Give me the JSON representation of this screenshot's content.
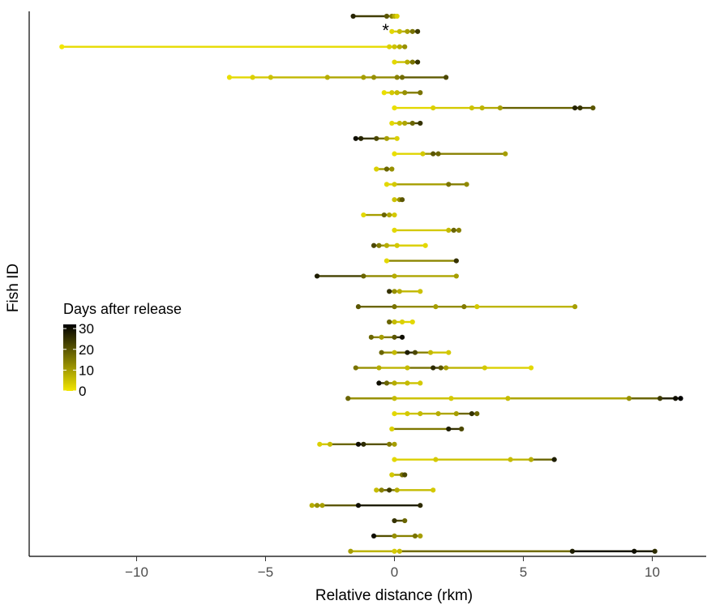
{
  "chart_data": {
    "type": "scatter",
    "xlabel": "Relative distance (rkm)",
    "ylabel": "Fish ID",
    "xlim": [
      -14.2,
      12.0
    ],
    "xticks": [
      -10,
      -5,
      0,
      5,
      10
    ],
    "xtick_labels": [
      "−10",
      "−5",
      "0",
      "5",
      "10"
    ],
    "grid": false,
    "annotation": "*",
    "annotated_fish": 1,
    "legend": {
      "title": "Days after release",
      "ticks": [
        30,
        20,
        10,
        0
      ],
      "tick_labels": [
        "30",
        "20",
        "10",
        "0"
      ],
      "color_low": "#f2e600",
      "color_high": "#000000",
      "placement": "left-center"
    },
    "fish": [
      {
        "points": [
          [
            -1.6,
            27
          ],
          [
            -0.3,
            20
          ],
          [
            -0.1,
            14
          ],
          [
            0.0,
            8
          ],
          [
            0.1,
            3
          ]
        ]
      },
      {
        "points": [
          [
            -0.1,
            2
          ],
          [
            0.2,
            6
          ],
          [
            0.5,
            10
          ],
          [
            0.7,
            16
          ],
          [
            0.9,
            24
          ]
        ]
      },
      {
        "points": [
          [
            -12.9,
            0
          ],
          [
            -0.2,
            3
          ],
          [
            0.0,
            5
          ],
          [
            0.2,
            8
          ],
          [
            0.4,
            12
          ]
        ]
      },
      {
        "points": [
          [
            0.0,
            2
          ],
          [
            0.5,
            8
          ],
          [
            0.7,
            16
          ],
          [
            0.9,
            25
          ]
        ]
      },
      {
        "points": [
          [
            -6.4,
            1
          ],
          [
            -5.5,
            3
          ],
          [
            -4.8,
            5
          ],
          [
            -2.6,
            8
          ],
          [
            -1.2,
            10
          ],
          [
            -0.8,
            12
          ],
          [
            0.1,
            14
          ],
          [
            0.3,
            17
          ],
          [
            2.0,
            22
          ]
        ]
      },
      {
        "points": [
          [
            -0.4,
            1
          ],
          [
            -0.1,
            4
          ],
          [
            0.1,
            6
          ],
          [
            0.4,
            12
          ],
          [
            1.0,
            16
          ]
        ]
      },
      {
        "points": [
          [
            0.0,
            1
          ],
          [
            1.5,
            3
          ],
          [
            3.0,
            5
          ],
          [
            3.4,
            7
          ],
          [
            4.1,
            10
          ],
          [
            7.0,
            27
          ],
          [
            7.2,
            25
          ],
          [
            7.7,
            20
          ]
        ]
      },
      {
        "points": [
          [
            -0.1,
            2
          ],
          [
            0.2,
            6
          ],
          [
            0.4,
            9
          ],
          [
            0.7,
            18
          ],
          [
            1.0,
            25
          ]
        ]
      },
      {
        "points": [
          [
            -1.5,
            30
          ],
          [
            -1.3,
            27
          ],
          [
            -0.7,
            22
          ],
          [
            -0.3,
            10
          ],
          [
            0.1,
            3
          ]
        ]
      },
      {
        "points": [
          [
            0.0,
            1
          ],
          [
            1.1,
            4
          ],
          [
            1.5,
            20
          ],
          [
            1.7,
            18
          ],
          [
            4.3,
            10
          ]
        ]
      },
      {
        "points": [
          [
            -0.7,
            3
          ],
          [
            -0.3,
            18
          ],
          [
            -0.1,
            12
          ]
        ]
      },
      {
        "points": [
          [
            -0.3,
            2
          ],
          [
            0.0,
            4
          ],
          [
            2.1,
            16
          ],
          [
            2.8,
            13
          ]
        ]
      },
      {
        "points": [
          [
            0.0,
            5
          ],
          [
            0.2,
            12
          ],
          [
            0.3,
            20
          ]
        ]
      },
      {
        "points": [
          [
            -1.2,
            2
          ],
          [
            -0.4,
            18
          ],
          [
            -0.2,
            9
          ],
          [
            0.0,
            4
          ]
        ]
      },
      {
        "points": [
          [
            0.0,
            2
          ],
          [
            2.1,
            6
          ],
          [
            2.3,
            18
          ],
          [
            2.5,
            14
          ]
        ]
      },
      {
        "points": [
          [
            -0.8,
            22
          ],
          [
            -0.6,
            15
          ],
          [
            -0.3,
            8
          ],
          [
            0.1,
            4
          ],
          [
            1.2,
            2
          ]
        ]
      },
      {
        "points": [
          [
            -0.3,
            2
          ],
          [
            2.4,
            25
          ]
        ]
      },
      {
        "points": [
          [
            -3.0,
            28
          ],
          [
            -1.2,
            18
          ],
          [
            0.0,
            8
          ],
          [
            2.4,
            10
          ]
        ]
      },
      {
        "points": [
          [
            -0.2,
            25
          ],
          [
            0.0,
            12
          ],
          [
            0.2,
            8
          ],
          [
            1.0,
            5
          ]
        ]
      },
      {
        "points": [
          [
            -1.4,
            20
          ],
          [
            0.0,
            16
          ],
          [
            1.6,
            10
          ],
          [
            2.7,
            15
          ],
          [
            3.2,
            4
          ],
          [
            7.0,
            10
          ]
        ]
      },
      {
        "points": [
          [
            -0.2,
            18
          ],
          [
            0.0,
            6
          ],
          [
            0.3,
            3
          ],
          [
            0.7,
            2
          ]
        ]
      },
      {
        "points": [
          [
            -0.9,
            18
          ],
          [
            -0.5,
            10
          ],
          [
            0.0,
            20
          ],
          [
            0.3,
            30
          ]
        ]
      },
      {
        "points": [
          [
            -0.5,
            18
          ],
          [
            0.0,
            6
          ],
          [
            0.5,
            28
          ],
          [
            0.8,
            22
          ],
          [
            1.4,
            6
          ],
          [
            2.1,
            4
          ]
        ]
      },
      {
        "points": [
          [
            -1.5,
            16
          ],
          [
            -0.6,
            8
          ],
          [
            0.5,
            6
          ],
          [
            1.5,
            26
          ],
          [
            1.8,
            20
          ],
          [
            2.0,
            10
          ],
          [
            3.5,
            4
          ],
          [
            5.3,
            2
          ]
        ]
      },
      {
        "points": [
          [
            -0.6,
            30
          ],
          [
            -0.3,
            18
          ],
          [
            0.0,
            8
          ],
          [
            0.5,
            6
          ],
          [
            1.0,
            4
          ]
        ]
      },
      {
        "points": [
          [
            -1.8,
            18
          ],
          [
            0.0,
            6
          ],
          [
            2.2,
            4
          ],
          [
            4.4,
            6
          ],
          [
            9.1,
            12
          ],
          [
            10.3,
            24
          ],
          [
            10.9,
            30
          ],
          [
            11.1,
            32
          ]
        ]
      },
      {
        "points": [
          [
            0.0,
            2
          ],
          [
            0.5,
            4
          ],
          [
            1.0,
            6
          ],
          [
            1.7,
            8
          ],
          [
            2.4,
            10
          ],
          [
            3.0,
            25
          ],
          [
            3.2,
            18
          ]
        ]
      },
      {
        "points": [
          [
            -0.1,
            3
          ],
          [
            2.1,
            28
          ],
          [
            2.6,
            22
          ]
        ]
      },
      {
        "points": [
          [
            -2.9,
            3
          ],
          [
            -2.5,
            6
          ],
          [
            -1.4,
            30
          ],
          [
            -1.2,
            26
          ],
          [
            -0.2,
            15
          ],
          [
            0.0,
            10
          ]
        ]
      },
      {
        "points": [
          [
            0.0,
            2
          ],
          [
            1.6,
            4
          ],
          [
            4.5,
            6
          ],
          [
            5.3,
            8
          ],
          [
            6.2,
            28
          ]
        ]
      },
      {
        "points": [
          [
            -0.1,
            4
          ],
          [
            0.3,
            16
          ],
          [
            0.4,
            22
          ]
        ]
      },
      {
        "points": [
          [
            -0.7,
            6
          ],
          [
            -0.5,
            14
          ],
          [
            -0.2,
            24
          ],
          [
            0.1,
            8
          ],
          [
            1.5,
            4
          ]
        ]
      },
      {
        "points": [
          [
            -3.2,
            8
          ],
          [
            -3.0,
            12
          ],
          [
            -2.8,
            10
          ],
          [
            -1.4,
            30
          ],
          [
            1.0,
            26
          ]
        ]
      },
      {
        "points": [
          [
            0.0,
            25
          ],
          [
            0.4,
            18
          ]
        ]
      },
      {
        "points": [
          [
            -0.8,
            30
          ],
          [
            0.0,
            12
          ],
          [
            0.8,
            16
          ],
          [
            1.0,
            10
          ]
        ]
      },
      {
        "points": [
          [
            -1.7,
            10
          ],
          [
            0.0,
            4
          ],
          [
            0.2,
            6
          ],
          [
            6.9,
            28
          ],
          [
            9.3,
            30
          ],
          [
            10.1,
            26
          ]
        ]
      }
    ]
  }
}
